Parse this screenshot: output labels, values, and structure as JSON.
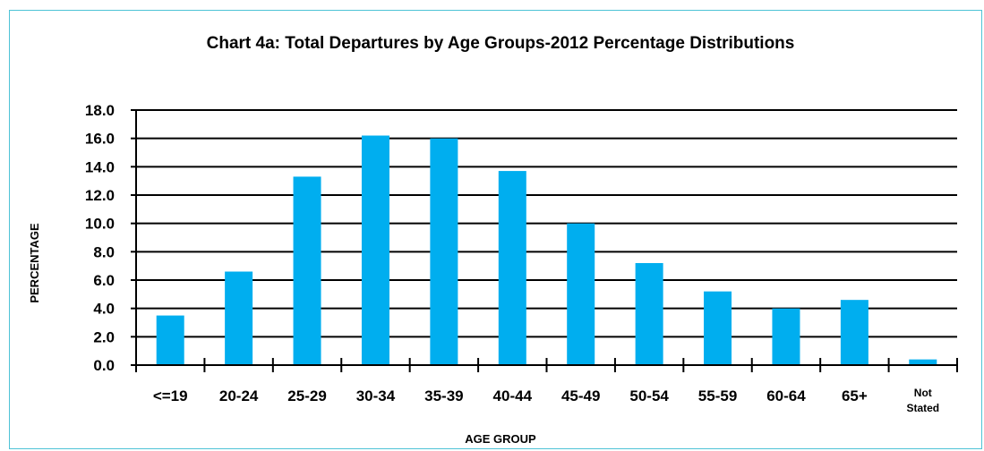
{
  "chart_data": {
    "type": "bar",
    "title": "Chart 4a: Total Departures by Age Groups-2012 Percentage Distributions",
    "xlabel": "AGE GROUP",
    "ylabel": "PERCENTAGE",
    "categories": [
      "<=19",
      "20-24",
      "25-29",
      "30-34",
      "35-39",
      "40-44",
      "45-49",
      "50-54",
      "55-59",
      "60-64",
      "65+",
      "Not Stated"
    ],
    "values": [
      3.5,
      6.6,
      13.3,
      16.2,
      16.0,
      13.7,
      10.0,
      7.2,
      5.2,
      4.0,
      4.6,
      0.4
    ],
    "ylim": [
      0,
      18
    ],
    "yticks": [
      "0.0",
      "2.0",
      "4.0",
      "6.0",
      "8.0",
      "10.0",
      "12.0",
      "14.0",
      "16.0",
      "18.0"
    ],
    "grid": true,
    "legend": "none",
    "bar_color": "#00aeef"
  }
}
